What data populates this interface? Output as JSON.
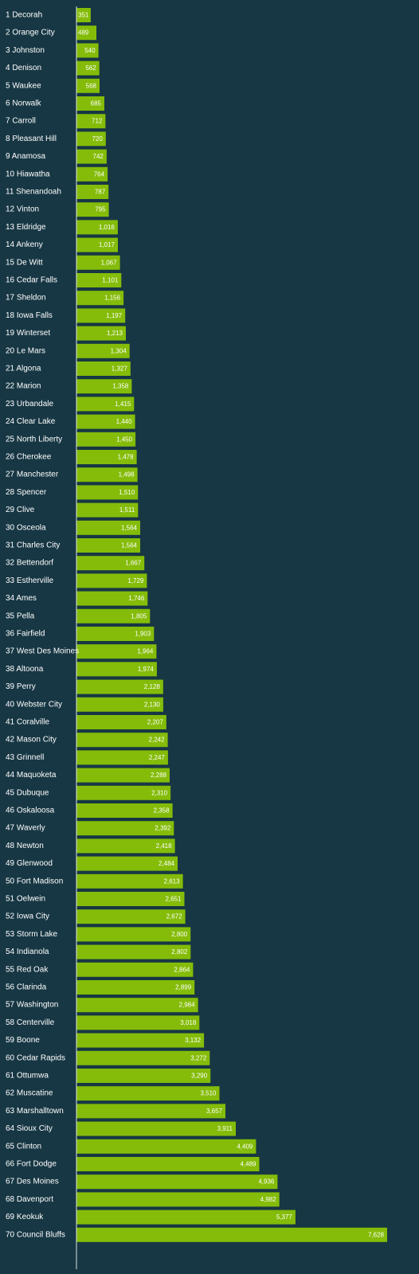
{
  "chart_data": {
    "type": "bar",
    "orientation": "horizontal",
    "title": "",
    "xlabel": "",
    "ylabel": "",
    "xlim": [
      0,
      7628
    ],
    "grid": false,
    "legend": "none",
    "colors": {
      "background": "#173744",
      "bar": "#84bc09",
      "text": "#ffffff",
      "axis": "#d9e3e6"
    },
    "categories": [
      "1 Decorah",
      "2 Orange City",
      "3 Johnston",
      "4 Denison",
      "5 Waukee",
      "6 Norwalk",
      "7 Carroll",
      "8 Pleasant Hill",
      "9 Anamosa",
      "10 Hiawatha",
      "11 Shenandoah",
      "12 Vinton",
      "13 Eldridge",
      "14 Ankeny",
      "15 De Witt",
      "16 Cedar Falls",
      "17 Sheldon",
      "18 Iowa Falls",
      "19 Winterset",
      "20 Le Mars",
      "21 Algona",
      "22 Marion",
      "23 Urbandale",
      "24 Clear Lake",
      "25 North Liberty",
      "26 Cherokee",
      "27 Manchester",
      "28 Spencer",
      "29 Clive",
      "30 Osceola",
      "31 Charles City",
      "32 Bettendorf",
      "33 Estherville",
      "34 Ames",
      "35 Pella",
      "36 Fairfield",
      "37 West Des Moines",
      "38 Altoona",
      "39 Perry",
      "40 Webster City",
      "41 Coralville",
      "42 Mason City",
      "43 Grinnell",
      "44 Maquoketa",
      "45 Dubuque",
      "46 Oskaloosa",
      "47 Waverly",
      "48 Newton",
      "49 Glenwood",
      "50 Fort Madison",
      "51 Oelwein",
      "52 Iowa City",
      "53 Storm Lake",
      "54 Indianola",
      "55 Red Oak",
      "56 Clarinda",
      "57 Washington",
      "58 Centerville",
      "59 Boone",
      "60 Cedar Rapids",
      "61 Ottumwa",
      "62 Muscatine",
      "63 Marshalltown",
      "64 Sioux City",
      "65 Clinton",
      "66 Fort Dodge",
      "67 Des Moines",
      "68 Davenport",
      "69 Keokuk",
      "70 Council Bluffs"
    ],
    "values": [
      351,
      489,
      540,
      562,
      568,
      685,
      712,
      720,
      742,
      764,
      787,
      795,
      1016,
      1017,
      1067,
      1101,
      1156,
      1197,
      1213,
      1304,
      1327,
      1358,
      1415,
      1440,
      1450,
      1478,
      1498,
      1510,
      1511,
      1564,
      1564,
      1667,
      1729,
      1746,
      1805,
      1903,
      1964,
      1974,
      2128,
      2130,
      2207,
      2242,
      2247,
      2288,
      2310,
      2358,
      2392,
      2418,
      2484,
      2613,
      2651,
      2672,
      2800,
      2802,
      2864,
      2899,
      2984,
      3018,
      3132,
      3272,
      3290,
      3510,
      3657,
      3911,
      4409,
      4489,
      4936,
      4982,
      5377,
      7628
    ],
    "value_labels": [
      "351",
      "489",
      "540",
      "562",
      "568",
      "685",
      "712",
      "720",
      "742",
      "764",
      "787",
      "795",
      "1,016",
      "1,017",
      "1,067",
      "1,101",
      "1,156",
      "1,197",
      "1,213",
      "1,304",
      "1,327",
      "1,358",
      "1,415",
      "1,440",
      "1,450",
      "1,478",
      "1,498",
      "1,510",
      "1,511",
      "1,564",
      "1,564",
      "1,667",
      "1,729",
      "1,746",
      "1,805",
      "1,903",
      "1,964",
      "1,974",
      "2,128",
      "2,130",
      "2,207",
      "2,242",
      "2,247",
      "2,288",
      "2,310",
      "2,358",
      "2,392",
      "2,418",
      "2,484",
      "2,613",
      "2,651",
      "2,672",
      "2,800",
      "2,802",
      "2,864",
      "2,899",
      "2,984",
      "3,018",
      "3,132",
      "3,272",
      "3,290",
      "3,510",
      "3,657",
      "3,911",
      "4,409",
      "4,489",
      "4,936",
      "4,982",
      "5,377",
      "7,628"
    ]
  }
}
